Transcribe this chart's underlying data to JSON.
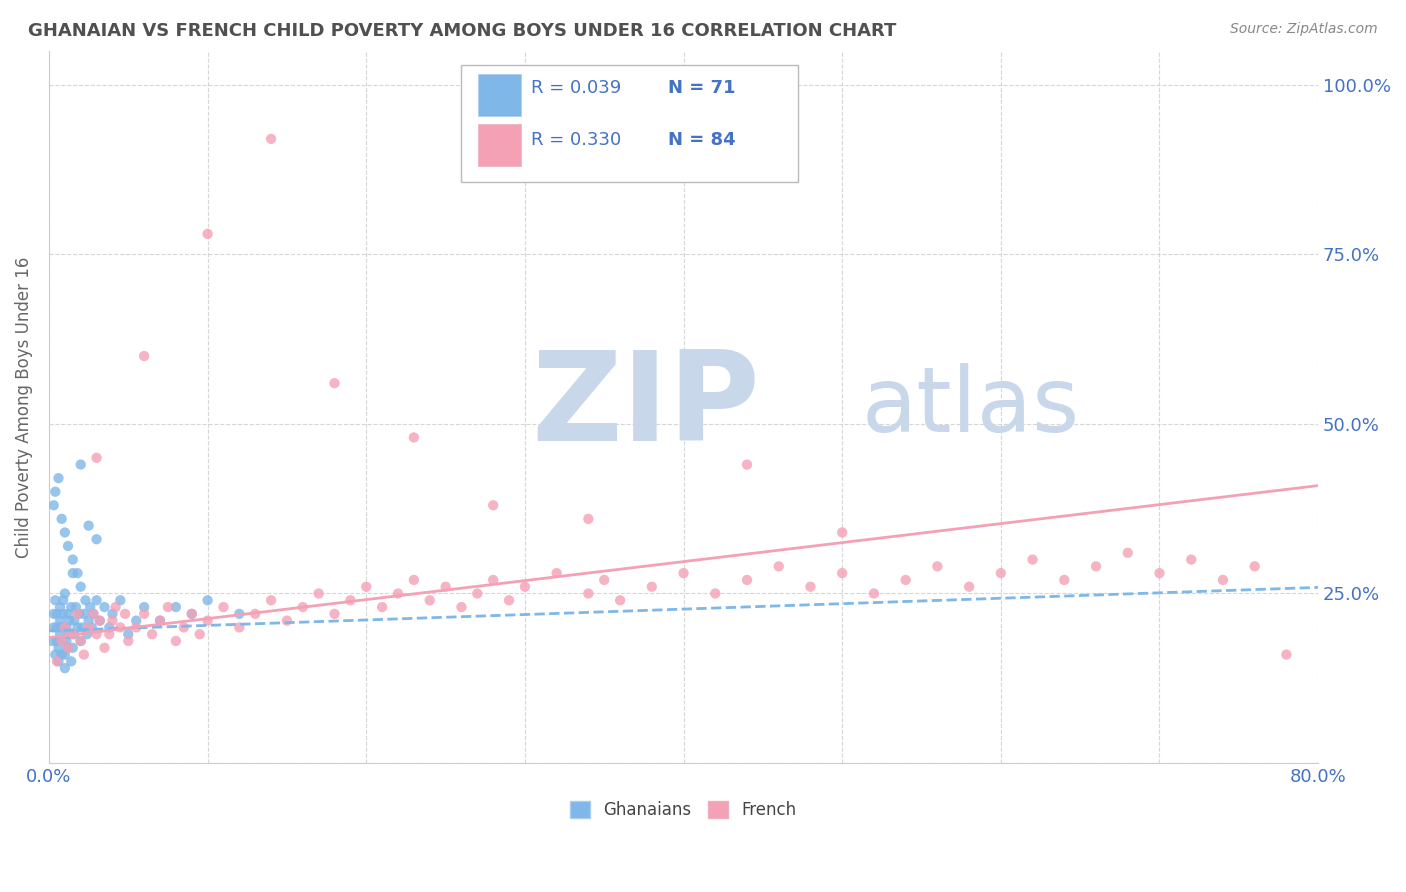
{
  "title": "GHANAIAN VS FRENCH CHILD POVERTY AMONG BOYS UNDER 16 CORRELATION CHART",
  "source": "Source: ZipAtlas.com",
  "ylabel": "Child Poverty Among Boys Under 16",
  "xlim": [
    0.0,
    0.8
  ],
  "ylim": [
    0.0,
    1.05
  ],
  "xtick_positions": [
    0.0,
    0.1,
    0.2,
    0.3,
    0.4,
    0.5,
    0.6,
    0.7,
    0.8
  ],
  "xticklabels": [
    "0.0%",
    "",
    "",
    "",
    "",
    "",
    "",
    "",
    "80.0%"
  ],
  "ytick_positions": [
    0.0,
    0.25,
    0.5,
    0.75,
    1.0
  ],
  "yticklabels_right": [
    "",
    "25.0%",
    "50.0%",
    "75.0%",
    "100.0%"
  ],
  "color_ghanaian": "#7EB7E8",
  "color_french": "#F4A0B5",
  "color_blue_text": "#4472C4",
  "color_title": "#505050",
  "color_source": "#888888",
  "watermark_zip": "ZIP",
  "watermark_atlas": "atlas",
  "watermark_color": "#C8D8EA",
  "background_color": "#FFFFFF",
  "grid_color": "#CCCCCC",
  "legend_r1": "R = 0.039",
  "legend_n1": "N = 71",
  "legend_r2": "R = 0.330",
  "legend_n2": "N = 84",
  "gh_x": [
    0.002,
    0.003,
    0.003,
    0.004,
    0.004,
    0.005,
    0.005,
    0.005,
    0.006,
    0.006,
    0.007,
    0.007,
    0.007,
    0.008,
    0.008,
    0.008,
    0.009,
    0.009,
    0.01,
    0.01,
    0.01,
    0.011,
    0.011,
    0.012,
    0.012,
    0.013,
    0.013,
    0.014,
    0.014,
    0.015,
    0.015,
    0.016,
    0.016,
    0.017,
    0.018,
    0.019,
    0.02,
    0.02,
    0.021,
    0.022,
    0.023,
    0.024,
    0.025,
    0.026,
    0.027,
    0.028,
    0.03,
    0.032,
    0.035,
    0.038,
    0.04,
    0.045,
    0.05,
    0.055,
    0.06,
    0.07,
    0.08,
    0.09,
    0.1,
    0.12,
    0.003,
    0.004,
    0.006,
    0.008,
    0.01,
    0.012,
    0.015,
    0.018,
    0.02,
    0.025,
    0.03
  ],
  "gh_y": [
    0.18,
    0.2,
    0.22,
    0.16,
    0.24,
    0.18,
    0.2,
    0.22,
    0.15,
    0.17,
    0.19,
    0.21,
    0.23,
    0.16,
    0.18,
    0.2,
    0.22,
    0.24,
    0.14,
    0.16,
    0.25,
    0.18,
    0.2,
    0.22,
    0.17,
    0.19,
    0.21,
    0.23,
    0.15,
    0.17,
    0.28,
    0.19,
    0.21,
    0.23,
    0.2,
    0.22,
    0.18,
    0.26,
    0.2,
    0.22,
    0.24,
    0.19,
    0.21,
    0.23,
    0.2,
    0.22,
    0.24,
    0.21,
    0.23,
    0.2,
    0.22,
    0.24,
    0.19,
    0.21,
    0.23,
    0.21,
    0.23,
    0.22,
    0.24,
    0.22,
    0.38,
    0.4,
    0.42,
    0.36,
    0.34,
    0.32,
    0.3,
    0.28,
    0.44,
    0.35,
    0.33
  ],
  "fr_x": [
    0.005,
    0.008,
    0.01,
    0.012,
    0.015,
    0.018,
    0.02,
    0.022,
    0.025,
    0.028,
    0.03,
    0.032,
    0.035,
    0.038,
    0.04,
    0.042,
    0.045,
    0.048,
    0.05,
    0.055,
    0.06,
    0.065,
    0.07,
    0.075,
    0.08,
    0.085,
    0.09,
    0.095,
    0.1,
    0.11,
    0.12,
    0.13,
    0.14,
    0.15,
    0.16,
    0.17,
    0.18,
    0.19,
    0.2,
    0.21,
    0.22,
    0.23,
    0.24,
    0.25,
    0.26,
    0.27,
    0.28,
    0.29,
    0.3,
    0.32,
    0.34,
    0.35,
    0.36,
    0.38,
    0.4,
    0.42,
    0.44,
    0.46,
    0.48,
    0.5,
    0.52,
    0.54,
    0.56,
    0.58,
    0.6,
    0.62,
    0.64,
    0.66,
    0.68,
    0.7,
    0.72,
    0.74,
    0.76,
    0.78,
    0.03,
    0.06,
    0.1,
    0.14,
    0.18,
    0.23,
    0.28,
    0.34,
    0.44,
    0.5
  ],
  "fr_y": [
    0.15,
    0.18,
    0.2,
    0.17,
    0.19,
    0.22,
    0.18,
    0.16,
    0.2,
    0.22,
    0.19,
    0.21,
    0.17,
    0.19,
    0.21,
    0.23,
    0.2,
    0.22,
    0.18,
    0.2,
    0.22,
    0.19,
    0.21,
    0.23,
    0.18,
    0.2,
    0.22,
    0.19,
    0.21,
    0.23,
    0.2,
    0.22,
    0.24,
    0.21,
    0.23,
    0.25,
    0.22,
    0.24,
    0.26,
    0.23,
    0.25,
    0.27,
    0.24,
    0.26,
    0.23,
    0.25,
    0.27,
    0.24,
    0.26,
    0.28,
    0.25,
    0.27,
    0.24,
    0.26,
    0.28,
    0.25,
    0.27,
    0.29,
    0.26,
    0.28,
    0.25,
    0.27,
    0.29,
    0.26,
    0.28,
    0.3,
    0.27,
    0.29,
    0.31,
    0.28,
    0.3,
    0.27,
    0.29,
    0.16,
    0.45,
    0.6,
    0.78,
    0.92,
    0.56,
    0.48,
    0.38,
    0.36,
    0.44,
    0.34
  ]
}
